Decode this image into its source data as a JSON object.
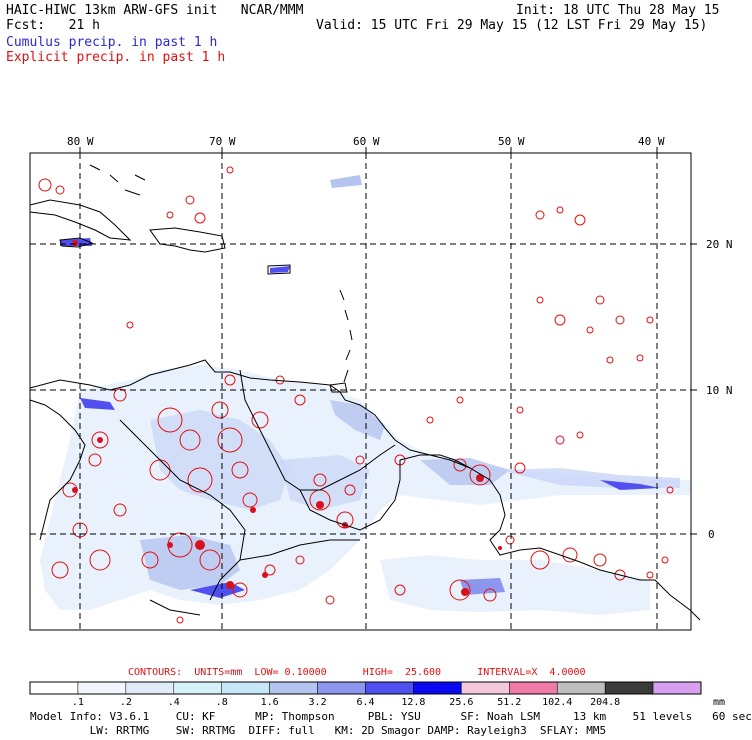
{
  "header": {
    "title": "HAIC-HIWC 13km ARW-GFS init   NCAR/MMM",
    "init": "Init: 18 UTC Thu 28 May 15",
    "fcst": "Fcst:   21 h",
    "valid": "Valid: 15 UTC Fri 29 May 15 (12 LST Fri 29 May 15)",
    "cumulus": "Cumulus precip. in past 1 h",
    "explicit": "Explicit precip. in past 1 h"
  },
  "axes": {
    "lon_labels": [
      "80 W",
      "70 W",
      "60 W",
      "50 W",
      "40 W"
    ],
    "lat_labels": [
      "20 N",
      "10 N",
      "0"
    ]
  },
  "colors": {
    "cumulus": "#2a2ad0",
    "explicit": "#e01010",
    "land": "#000000"
  },
  "contours": {
    "text": "CONTOURS:  UNITS=mm  LOW= 0.10000      HIGH=  25.600      INTERVAL=X  4.0000"
  },
  "colorbar": {
    "labels": [
      ".1",
      ".2",
      ".4",
      ".8",
      "1.6",
      "3.2",
      "6.4",
      "12.8",
      "25.6",
      "51.2",
      "102.4",
      "204.8"
    ],
    "unit": "mm",
    "colors": [
      "#ffffff",
      "#f2f4fb",
      "#e0ecfa",
      "#d4f4fa",
      "#c8e8f8",
      "#b4c4f0",
      "#8c96ee",
      "#5050f0",
      "#0a0af0",
      "#f5c8dc",
      "#ee7aa8",
      "#bebebe",
      "#3a3a3a",
      "#d8a0f0"
    ]
  },
  "footer": {
    "line1": "Model Info: V3.6.1    CU: KF      MP: Thompson     PBL: YSU      SF: Noah LSM     13 km    51 levels   60 sec",
    "line2": "         LW: RRTMG    SW: RRTMG  DIFF: full   KM: 2D Smagor DAMP: Rayleigh3  SFLAY: MM5"
  }
}
